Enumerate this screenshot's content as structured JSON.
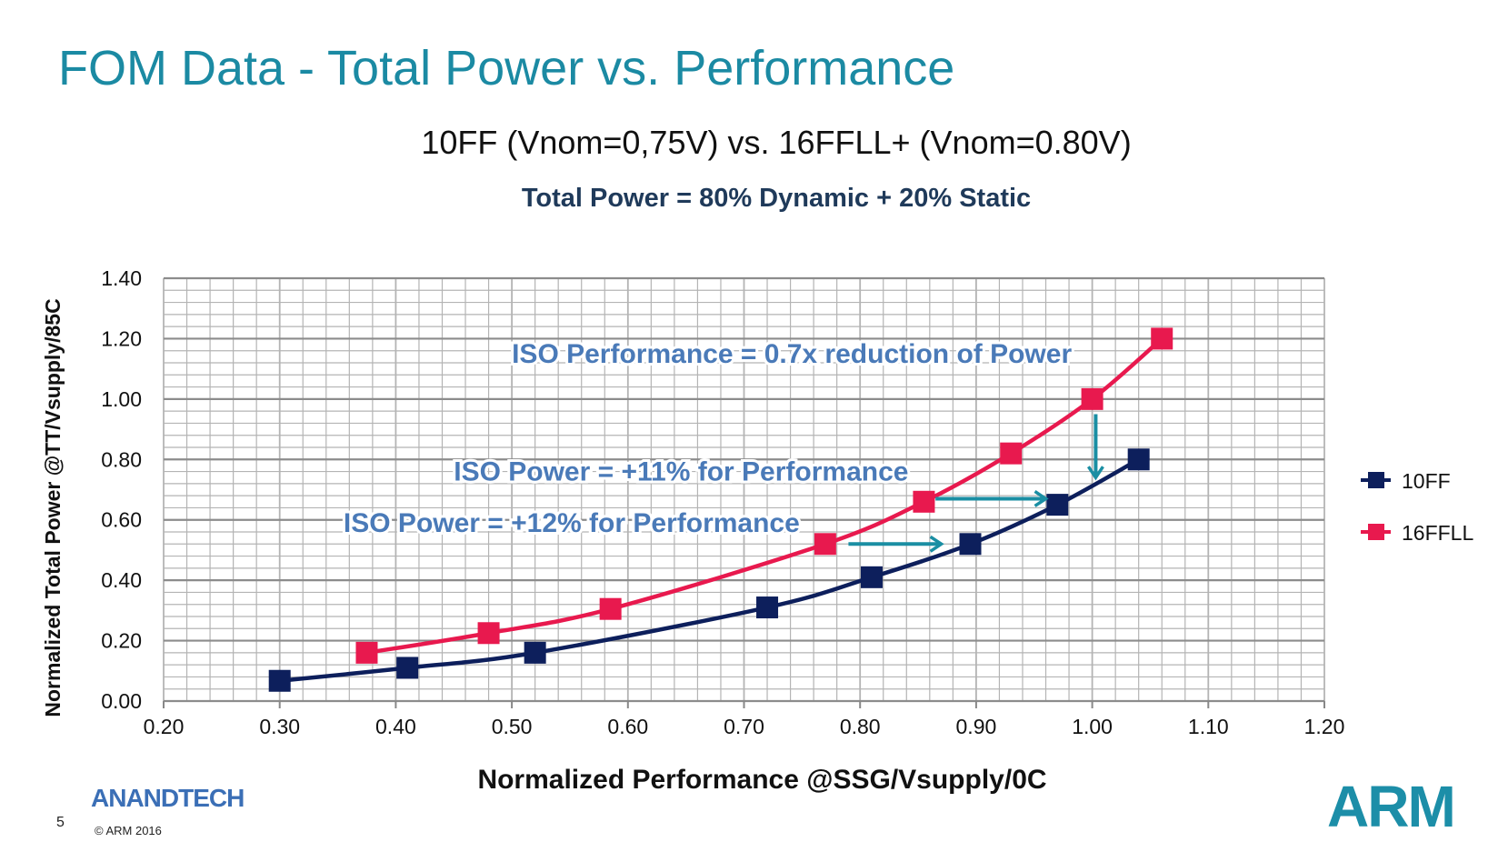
{
  "slide": {
    "title": "FOM Data - Total Power vs. Performance",
    "subtitle": "10FF (Vnom=0,75V) vs. 16FFLL+ (Vnom=0.80V)",
    "formula": "Total Power = 80% Dynamic + 20% Static",
    "page_number": "5",
    "copyright": "© ARM 2016",
    "watermark": "AnandTech",
    "logo": "ARM"
  },
  "chart_data": {
    "type": "line",
    "title": "",
    "xlabel": "Normalized Performance @SSG/Vsupply/0C",
    "ylabel": "Normalized Total Power @TT/Vsupply/85C",
    "xlim": [
      0.2,
      1.2
    ],
    "ylim": [
      0.0,
      1.4
    ],
    "x_ticks": [
      "0.20",
      "0.30",
      "0.40",
      "0.50",
      "0.60",
      "0.70",
      "0.80",
      "0.90",
      "1.00",
      "1.10",
      "1.20"
    ],
    "y_ticks": [
      "0.00",
      "0.20",
      "0.40",
      "0.60",
      "0.80",
      "1.00",
      "1.20",
      "1.40"
    ],
    "grid": true,
    "legend_position": "right",
    "series": [
      {
        "name": "10FF",
        "color": "#0d1f5c",
        "x": [
          0.3,
          0.41,
          0.52,
          0.72,
          0.81,
          0.895,
          0.97,
          1.04
        ],
        "y": [
          0.067,
          0.11,
          0.16,
          0.31,
          0.41,
          0.52,
          0.65,
          0.8
        ]
      },
      {
        "name": "16FFLL",
        "color": "#e8194e",
        "x": [
          0.375,
          0.48,
          0.585,
          0.77,
          0.855,
          0.93,
          1.0,
          1.06
        ],
        "y": [
          0.16,
          0.225,
          0.305,
          0.52,
          0.66,
          0.82,
          1.0,
          1.2
        ]
      }
    ],
    "annotations": [
      {
        "text": "ISO Performance = 0.7x reduction of Power",
        "x": 0.5,
        "y": 1.12
      },
      {
        "text": "ISO Power = +11% for Performance",
        "x": 0.45,
        "y": 0.73
      },
      {
        "text": "ISO Power = +12% for Performance",
        "x": 0.355,
        "y": 0.56
      }
    ],
    "arrows": [
      {
        "from": [
          0.865,
          0.67
        ],
        "to": [
          0.96,
          0.67
        ],
        "direction": "right"
      },
      {
        "from": [
          0.79,
          0.52
        ],
        "to": [
          0.87,
          0.52
        ],
        "direction": "right"
      },
      {
        "from": [
          1.003,
          0.95
        ],
        "to": [
          1.003,
          0.74
        ],
        "direction": "down"
      }
    ],
    "annotation_color": "#4a7ab8",
    "arrow_color": "#1a8ea3"
  }
}
